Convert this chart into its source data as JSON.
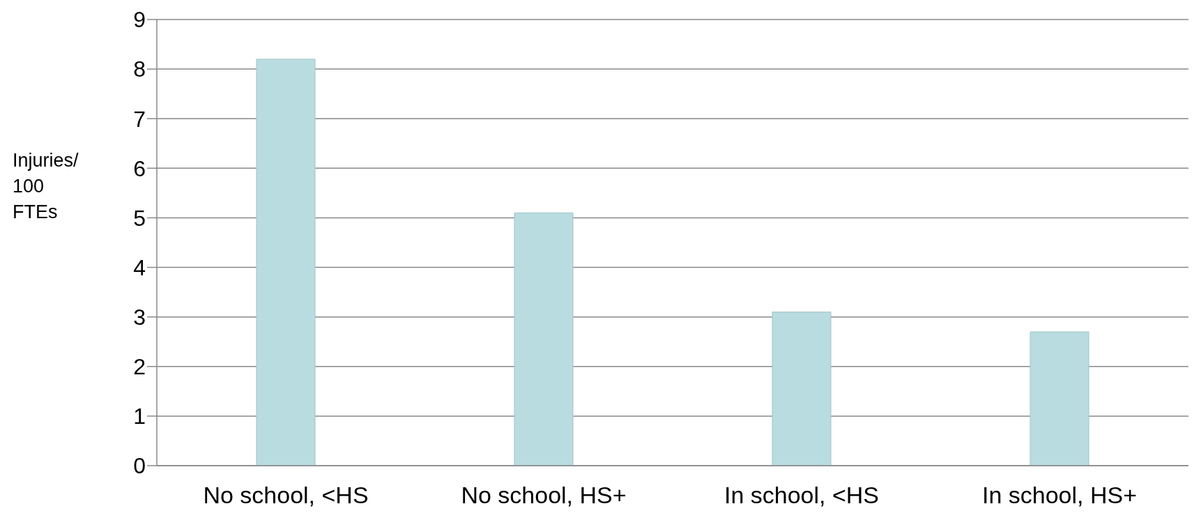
{
  "chart_data": {
    "type": "bar",
    "ylabel": "Injuries/ 100 FTEs",
    "categories": [
      "No school, <HS",
      "No school, HS+",
      "In school, <HS",
      "In school, HS+"
    ],
    "values": [
      8.2,
      5.1,
      3.1,
      2.7
    ],
    "color": "#b8dce0",
    "ylim": [
      0,
      9
    ],
    "yticks": [
      0,
      1,
      2,
      3,
      4,
      5,
      6,
      7,
      8,
      9
    ],
    "grid": "y"
  }
}
